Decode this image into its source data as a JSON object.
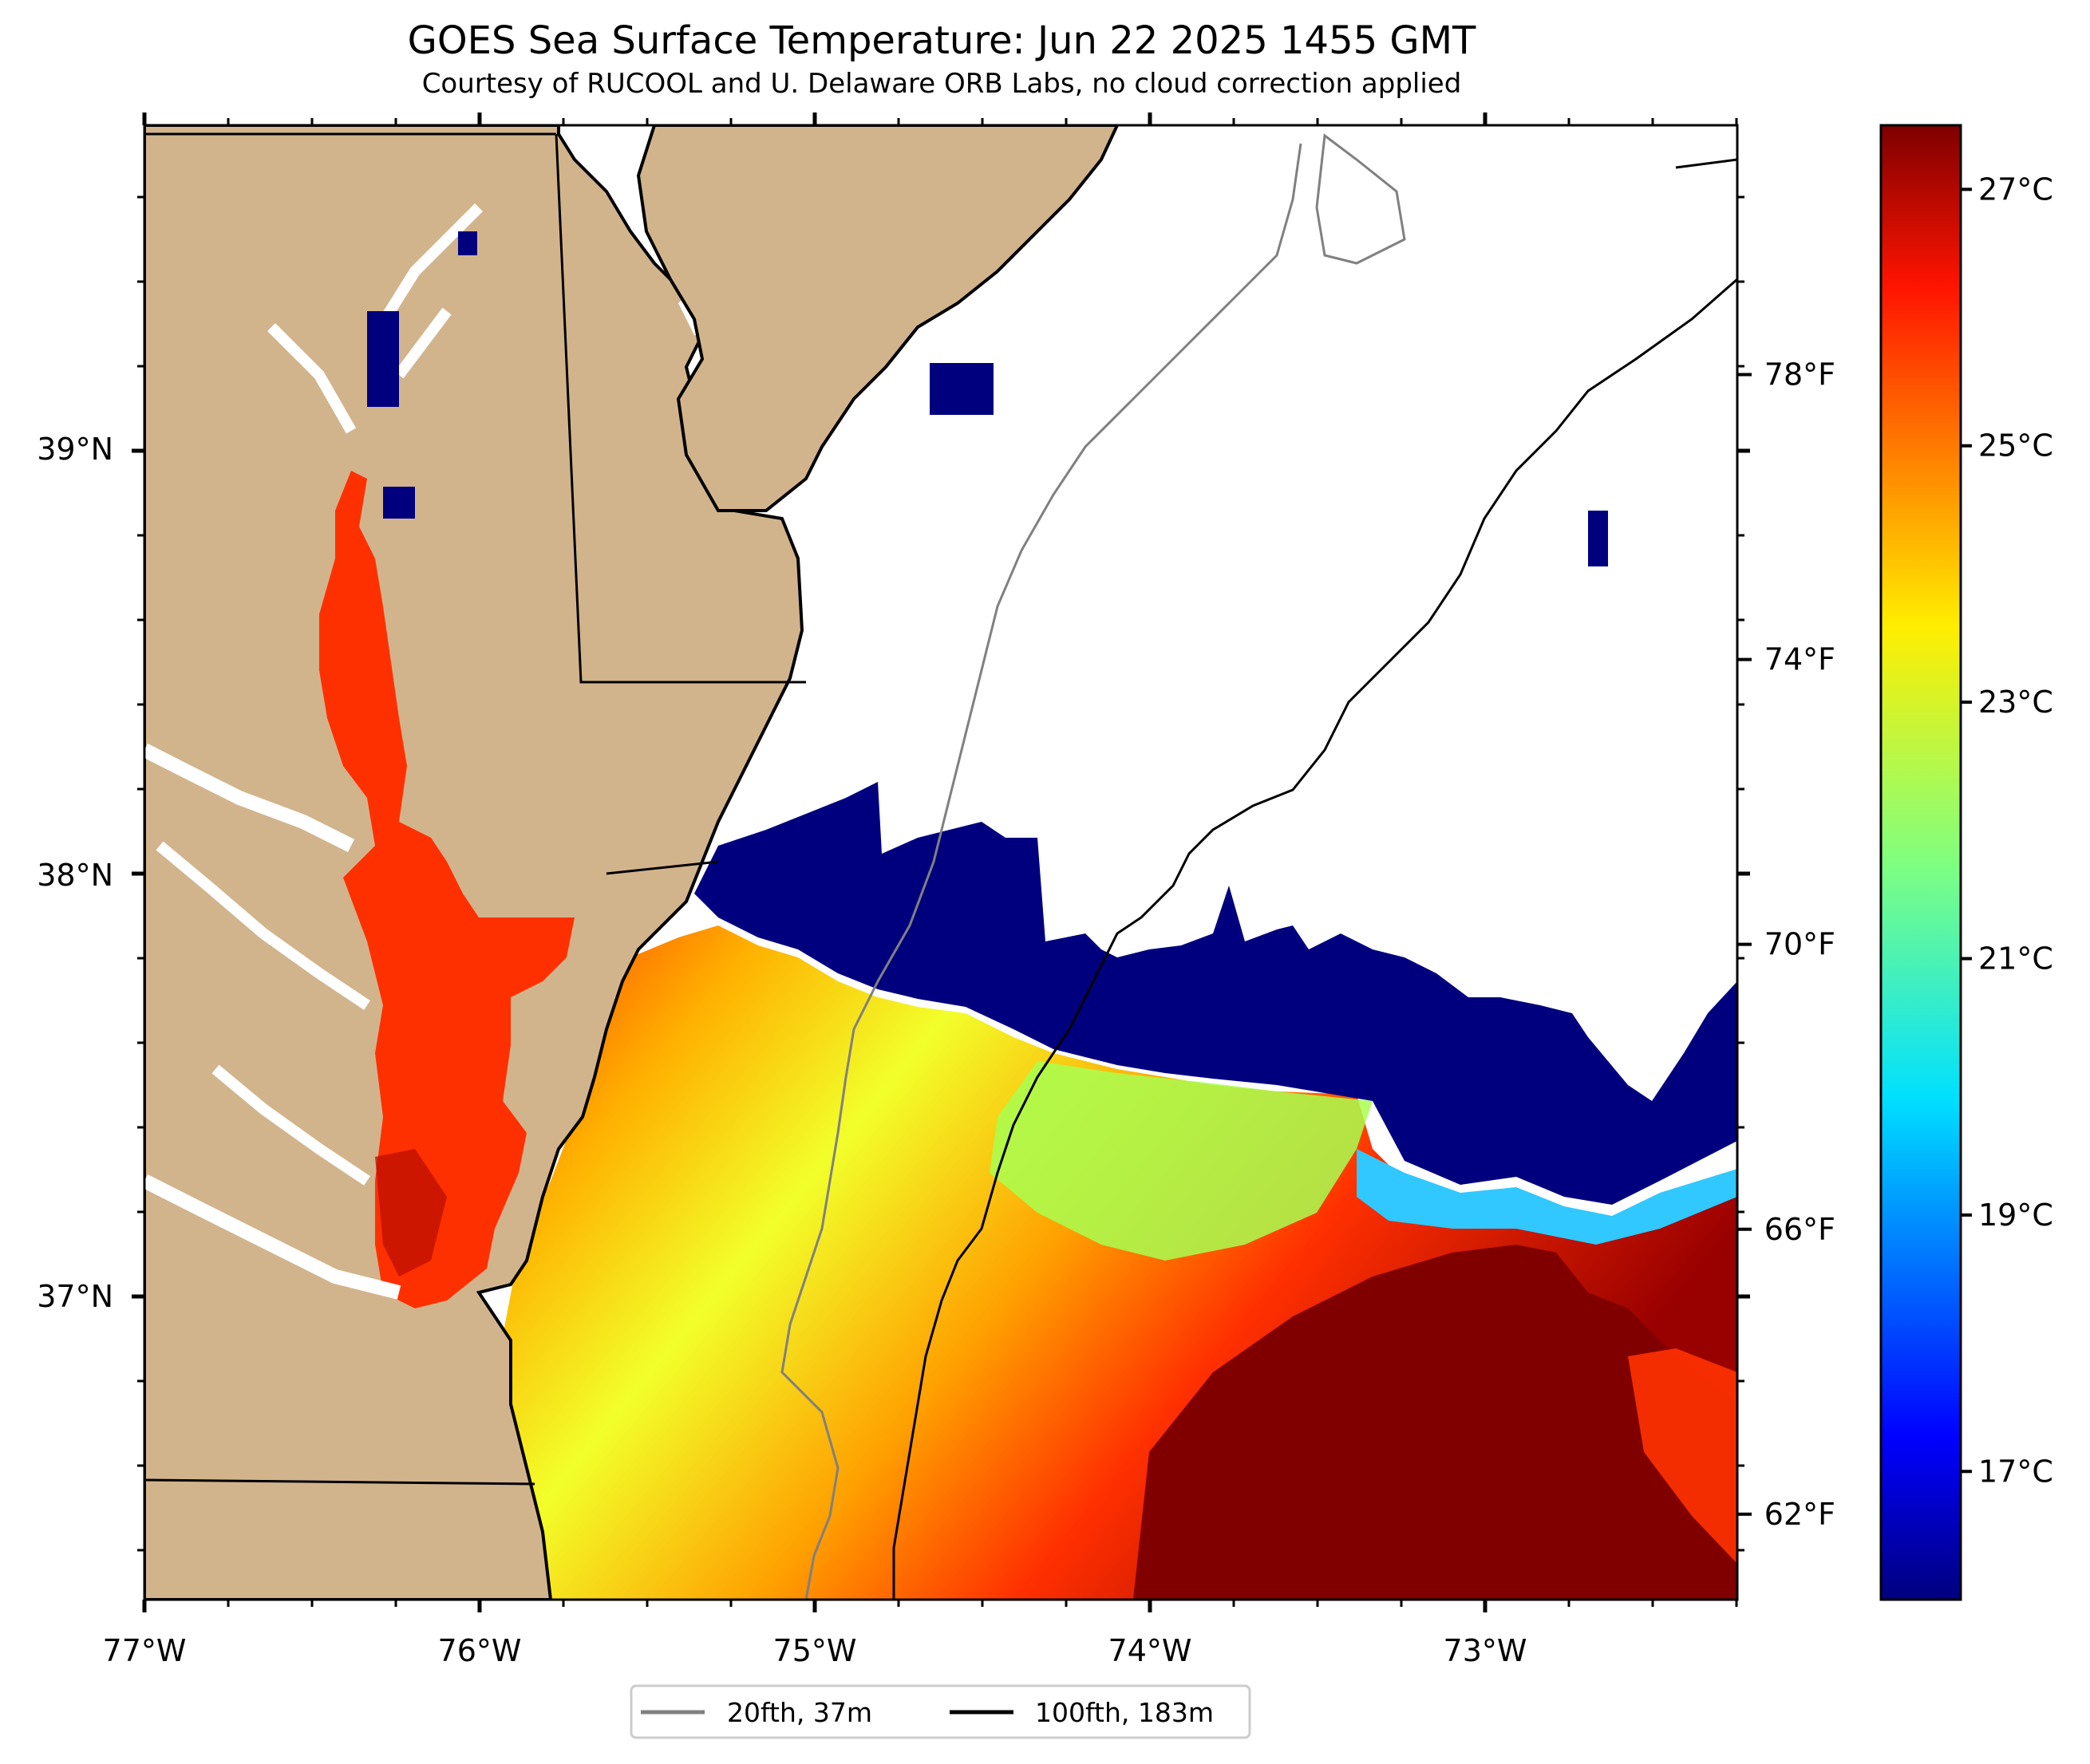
{
  "header": {
    "title": "GOES Sea Surface Temperature: Jun 22 2025 1455 GMT",
    "subtitle": "Courtesy of RUCOOL and U. Delaware ORB Labs, no cloud correction applied"
  },
  "map": {
    "lon_range": [
      -77.0,
      -72.25
    ],
    "lat_range": [
      36.3,
      39.8
    ],
    "lon_ticks": [
      {
        "value": -77,
        "label": "77°W"
      },
      {
        "value": -76,
        "label": "76°W"
      },
      {
        "value": -75,
        "label": "75°W"
      },
      {
        "value": -74,
        "label": "74°W"
      },
      {
        "value": -73,
        "label": "73°W"
      }
    ],
    "lat_ticks": [
      {
        "value": 39,
        "label": "39°N"
      },
      {
        "value": 38,
        "label": "38°N"
      },
      {
        "value": 37,
        "label": "37°N"
      }
    ],
    "colors": {
      "land": "#d2b48c",
      "ocean_no_data": "#ffffff",
      "contour_20fth": "#808080",
      "contour_100fth": "#000000",
      "state_border": "#000000"
    }
  },
  "colorbar": {
    "celsius_ticks": [
      {
        "value": 27,
        "label": "27°C"
      },
      {
        "value": 25,
        "label": "25°C"
      },
      {
        "value": 23,
        "label": "23°C"
      },
      {
        "value": 21,
        "label": "21°C"
      },
      {
        "value": 19,
        "label": "19°C"
      },
      {
        "value": 17,
        "label": "17°C"
      }
    ],
    "fahrenheit_ticks": [
      {
        "value": 78,
        "label": "78°F"
      },
      {
        "value": 74,
        "label": "74°F"
      },
      {
        "value": 70,
        "label": "70°F"
      },
      {
        "value": 66,
        "label": "66°F"
      },
      {
        "value": 62,
        "label": "62°F"
      }
    ],
    "range_c": [
      16.0,
      27.5
    ],
    "colormap": "jet"
  },
  "legend": {
    "items": [
      {
        "label": "20fth, 37m",
        "color": "#808080"
      },
      {
        "label": "100fth, 183m",
        "color": "#000000"
      }
    ]
  }
}
